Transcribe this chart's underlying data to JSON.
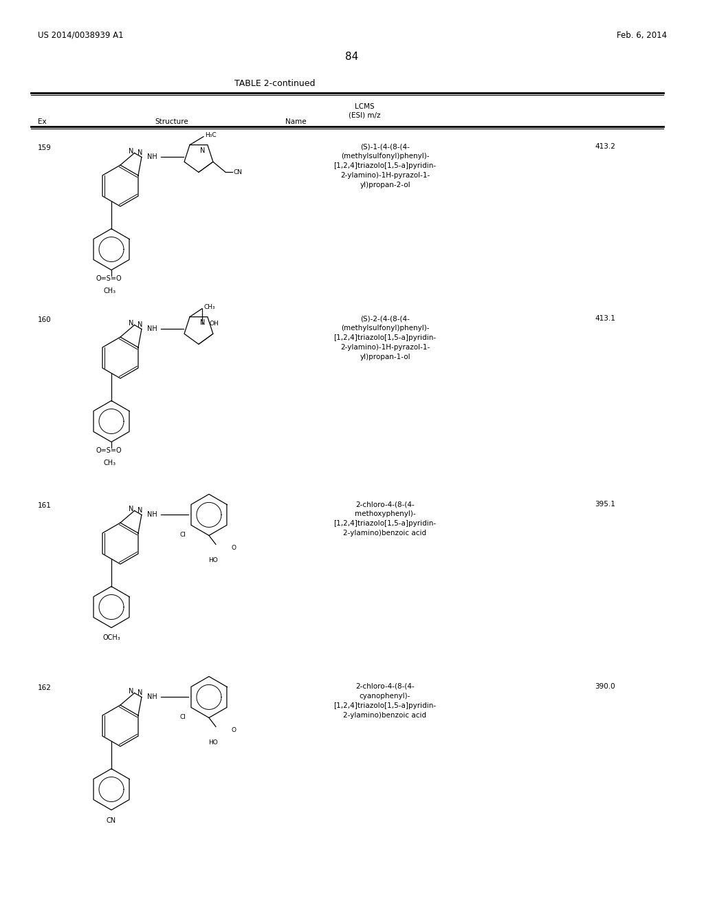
{
  "page_number": "84",
  "patent_left": "US 2014/0038939 A1",
  "patent_right": "Feb. 6, 2014",
  "table_title": "TABLE 2-continued",
  "background_color": "#ffffff",
  "text_color": "#000000",
  "rows": [
    {
      "ex": "159",
      "name": "(S)-1-(4-(8-(4-\n(methylsulfonyl)phenyl)-\n[1,2,4]triazolo[1,5-a]pyridin-\n2-ylamino)-1H-pyrazol-1-\nyl)propan-2-ol",
      "lcms": "413.2"
    },
    {
      "ex": "160",
      "name": "(S)-2-(4-(8-(4-\n(methylsulfonyl)phenyl)-\n[1,2,4]triazolo[1,5-a]pyridin-\n2-ylamino)-1H-pyrazol-1-\nyl)propan-1-ol",
      "lcms": "413.1"
    },
    {
      "ex": "161",
      "name": "2-chloro-4-(8-(4-\nmethoxyphenyl)-\n[1,2,4]triazolo[1,5-a]pyridin-\n2-ylamino)benzoic acid",
      "lcms": "395.1"
    },
    {
      "ex": "162",
      "name": "2-chloro-4-(8-(4-\ncyanophenyl)-\n[1,2,4]triazolo[1,5-a]pyridin-\n2-ylamino)benzoic acid",
      "lcms": "390.0"
    }
  ]
}
